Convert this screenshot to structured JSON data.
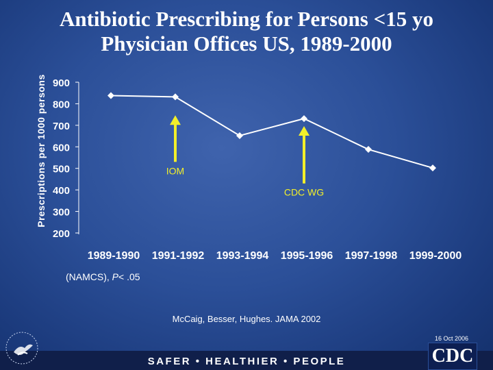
{
  "chart_data": {
    "type": "line",
    "title": "Antibiotic Prescribing for Persons <15 yo",
    "subtitle": "Physician Offices US, 1989-2000",
    "ylabel": "Prescriptions per 1000 persons",
    "xlabel": "",
    "categories": [
      "1989-1990",
      "1991-1992",
      "1993-1994",
      "1995-1996",
      "1997-1998",
      "1999-2000"
    ],
    "values": [
      838,
      832,
      652,
      731,
      588,
      502
    ],
    "ylim": [
      200,
      900
    ],
    "yticks": [
      900,
      800,
      700,
      600,
      500,
      400,
      300,
      200
    ],
    "annotations": [
      {
        "label": "IOM",
        "category": "1991-1992",
        "arrow_top": 740,
        "arrow_bottom": 530
      },
      {
        "label": "CDC WG",
        "category": "1995-1996",
        "arrow_top": 690,
        "arrow_bottom": 430
      }
    ],
    "series_color": "#ffffff",
    "arrow_color": "#f2ef2a"
  },
  "note": {
    "prefix": "(NAMCS), ",
    "p": "P",
    "suffix": "< .05"
  },
  "citation": "McCaig, Besser, Hughes. JAMA 2002",
  "date": "16 Oct 2006",
  "footer": {
    "tagline": "SAFER • HEALTHIER • PEOPLE",
    "logo_text": "CDC"
  }
}
